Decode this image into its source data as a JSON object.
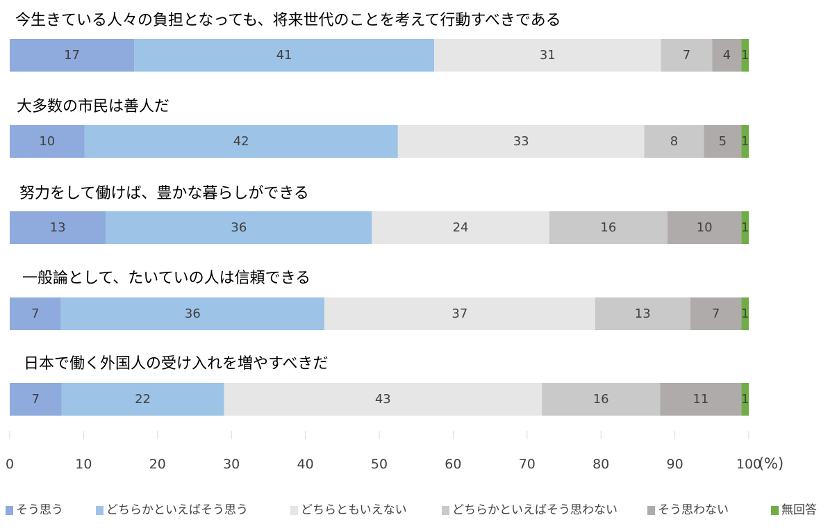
{
  "chart_data": {
    "type": "bar",
    "orientation": "horizontal",
    "stacked": true,
    "unit_label": "(%)",
    "xlim": [
      0,
      100
    ],
    "x_ticks": [
      0,
      10,
      20,
      30,
      40,
      50,
      60,
      70,
      80,
      90,
      100
    ],
    "grid": true,
    "legend_position": "bottom",
    "categories": [
      "今生きている人々の負担となっても、将来世代のことを考えて行動すべきである",
      "大多数の市民は善人だ",
      "努力をして働けば、豊かな暮らしができる",
      "一般論として、たいていの人は信頼できる",
      "日本で働く外国人の受け入れを増やすべきだ"
    ],
    "series": [
      {
        "name": "そう思う",
        "color": "#8faadc",
        "values": [
          17,
          10,
          13,
          7,
          7
        ]
      },
      {
        "name": "どちらかといえばそう思う",
        "color": "#9dc3e6",
        "values": [
          41,
          42,
          36,
          36,
          22
        ]
      },
      {
        "name": "どちらともいえない",
        "color": "#e7e6e6",
        "values": [
          31,
          33,
          24,
          37,
          43
        ]
      },
      {
        "name": "どちらかといえばそう思わない",
        "color": "#c9c9c9",
        "values": [
          7,
          8,
          16,
          13,
          16
        ]
      },
      {
        "name": "そう思わない",
        "color": "#afabab",
        "values": [
          4,
          5,
          10,
          7,
          11
        ]
      },
      {
        "name": "無回答",
        "color": "#70ad47",
        "values": [
          1,
          1,
          1,
          1,
          1
        ]
      }
    ]
  }
}
